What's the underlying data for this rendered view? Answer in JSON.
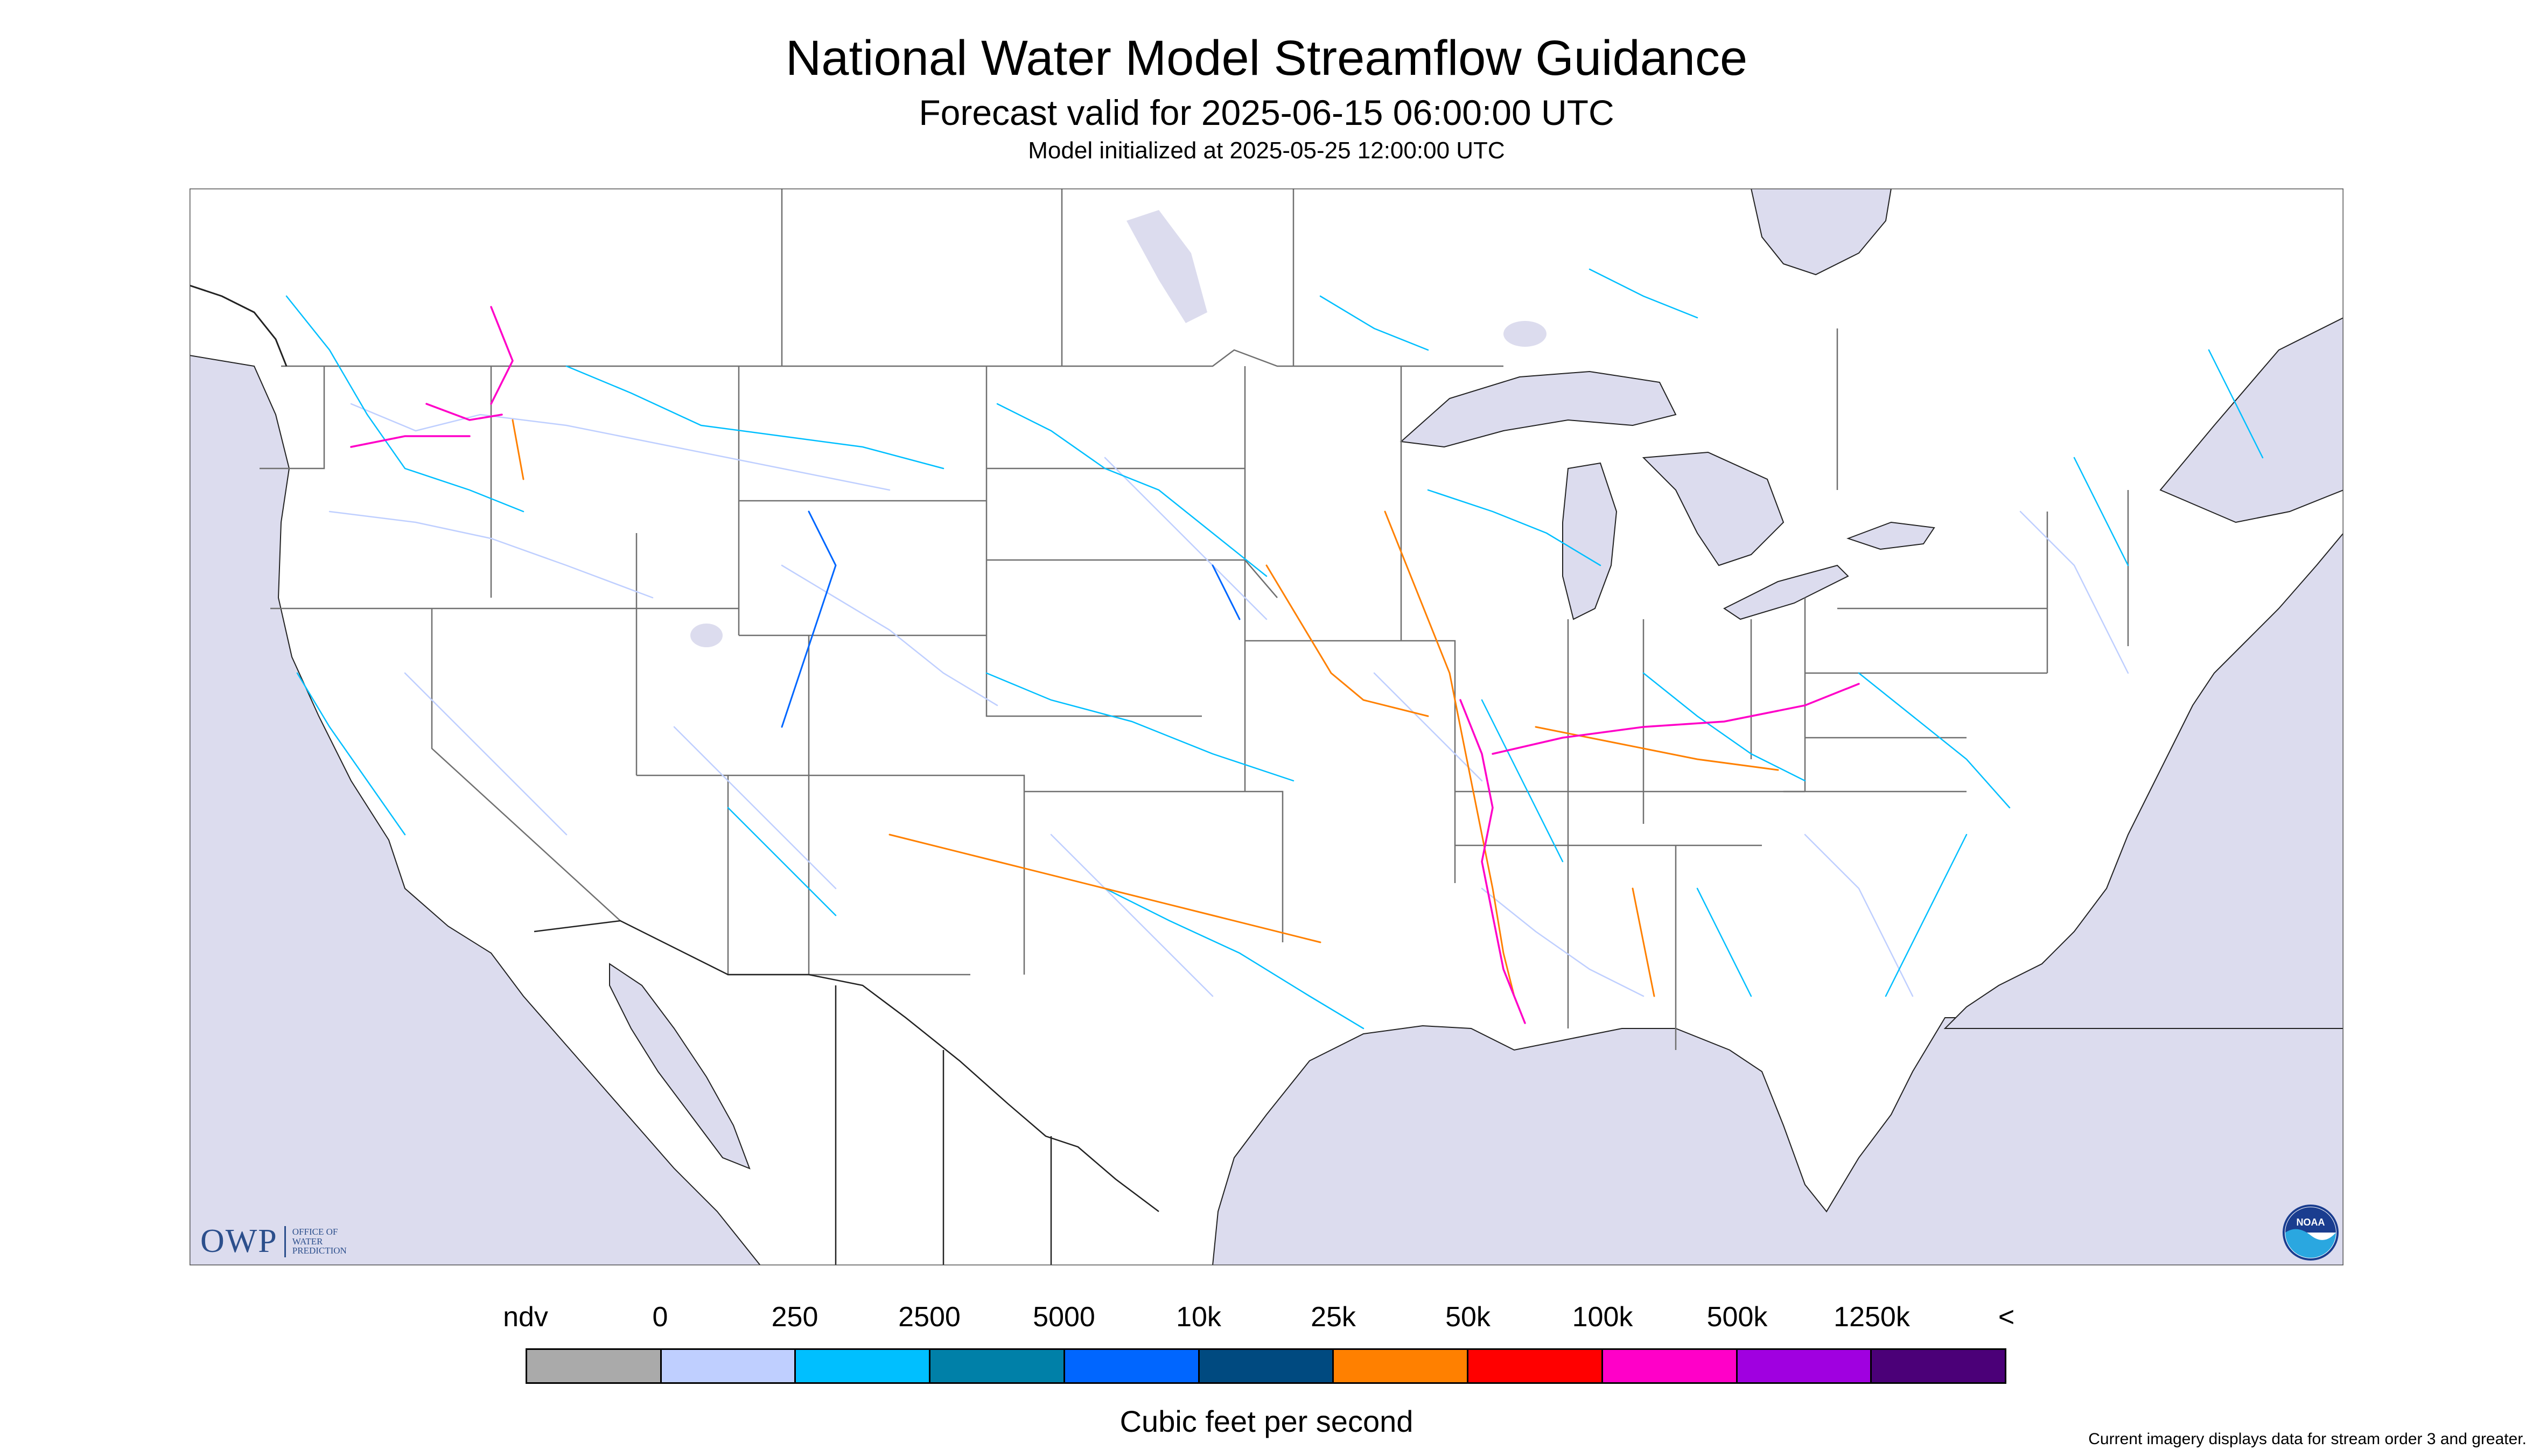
{
  "header": {
    "title": "National Water Model Streamflow Guidance",
    "subtitle": "Forecast valid for 2025-06-15 06:00:00 UTC",
    "init_line": "Model initialized at 2025-05-25 12:00:00 UTC"
  },
  "map": {
    "region": "Continental United States",
    "colors": {
      "land": "#ffffff",
      "water": "#dcdcee",
      "borders": "#6e6e6e"
    }
  },
  "legend": {
    "tick_labels": [
      "ndv",
      "0",
      "250",
      "2500",
      "5000",
      "10k",
      "25k",
      "50k",
      "100k",
      "500k",
      "1250k",
      "<"
    ],
    "swatch_colors": [
      "#aaaaaa",
      "#bfcfff",
      "#00bfff",
      "#0080a8",
      "#0066ff",
      "#004a80",
      "#ff8000",
      "#ff0000",
      "#ff00c8",
      "#a000e0",
      "#4b0078"
    ],
    "units": "Cubic feet per second"
  },
  "footnote": "Current imagery displays data for stream order 3 and greater.",
  "logos": {
    "owp_letters": "OWP",
    "owp_text": [
      "OFFICE OF",
      "WATER",
      "PREDICTION"
    ],
    "noaa_icon": "noaa-logo-icon"
  }
}
